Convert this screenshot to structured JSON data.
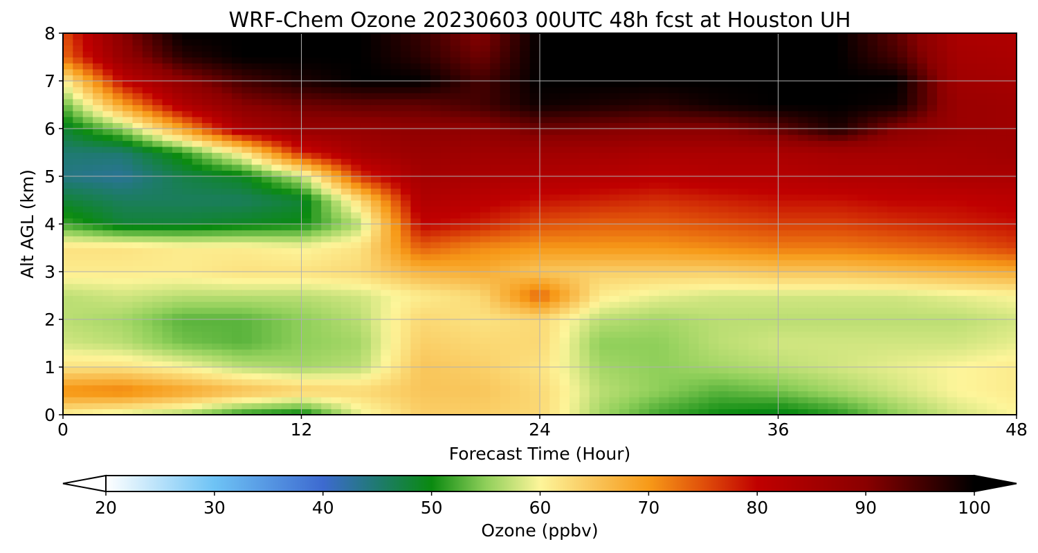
{
  "chart_data": {
    "type": "heatmap",
    "title": "WRF-Chem Ozone  20230603 00UTC 48h fcst at Houston UH",
    "xlabel": "Forecast Time (Hour)",
    "ylabel": "Alt AGL (km)",
    "xlim": [
      0,
      48
    ],
    "ylim": [
      0,
      8
    ],
    "xticks": [
      0,
      12,
      24,
      36,
      48
    ],
    "yticks": [
      0,
      1,
      2,
      3,
      4,
      5,
      6,
      7,
      8
    ],
    "grid": true,
    "colorbar": {
      "label": "Ozone  (ppbv)",
      "min": 20,
      "max": 100,
      "ticks": [
        20,
        30,
        40,
        50,
        60,
        70,
        80,
        90,
        100
      ],
      "extend": "both",
      "stops": [
        {
          "v": 20,
          "c": "#ffffff"
        },
        {
          "v": 30,
          "c": "#6ec3f5"
        },
        {
          "v": 40,
          "c": "#3d6ad0"
        },
        {
          "v": 45,
          "c": "#1f7a70"
        },
        {
          "v": 50,
          "c": "#0a8a10"
        },
        {
          "v": 55,
          "c": "#8fcf5a"
        },
        {
          "v": 60,
          "c": "#fdf59a"
        },
        {
          "v": 65,
          "c": "#f9c55a"
        },
        {
          "v": 70,
          "c": "#f79a18"
        },
        {
          "v": 75,
          "c": "#e0500a"
        },
        {
          "v": 80,
          "c": "#c00000"
        },
        {
          "v": 90,
          "c": "#8a0000"
        },
        {
          "v": 100,
          "c": "#000000"
        }
      ]
    },
    "x_hours": [
      0,
      3,
      6,
      9,
      12,
      15,
      18,
      21,
      24,
      27,
      30,
      33,
      36,
      39,
      42,
      45,
      48
    ],
    "y_km": [
      0,
      0.5,
      1,
      1.5,
      2,
      2.5,
      3,
      3.5,
      4,
      4.5,
      5,
      5.5,
      6,
      6.5,
      7,
      7.5,
      8
    ],
    "ozone_ppbv": [
      [
        60,
        58,
        56,
        51,
        49,
        59,
        64,
        64,
        63,
        56,
        52,
        50,
        49,
        51,
        55,
        58,
        60
      ],
      [
        71,
        72,
        69,
        66,
        64,
        63,
        65,
        65,
        63,
        57,
        55,
        53,
        54,
        56,
        58,
        60,
        61
      ],
      [
        62,
        62,
        60,
        57,
        56,
        57,
        65,
        64,
        62,
        56,
        55,
        56,
        57,
        58,
        59,
        60,
        61
      ],
      [
        58,
        57,
        54,
        53,
        55,
        56,
        64,
        63,
        63,
        55,
        55,
        57,
        58,
        58,
        58,
        58,
        59
      ],
      [
        57,
        56,
        53,
        53,
        55,
        57,
        63,
        62,
        63,
        57,
        56,
        57,
        57,
        57,
        57,
        57,
        58
      ],
      [
        57,
        58,
        57,
        57,
        57,
        58,
        61,
        63,
        74,
        61,
        59,
        58,
        58,
        58,
        58,
        59,
        60
      ],
      [
        61,
        61,
        61,
        62,
        62,
        63,
        67,
        68,
        65,
        64,
        64,
        64,
        65,
        65,
        66,
        67,
        68
      ],
      [
        62,
        62,
        61,
        61,
        60,
        62,
        74,
        71,
        70,
        70,
        70,
        71,
        72,
        72,
        73,
        74,
        76
      ],
      [
        52,
        48,
        48,
        49,
        50,
        57,
        80,
        78,
        75,
        74,
        74,
        75,
        76,
        76,
        77,
        78,
        79
      ],
      [
        48,
        46,
        46,
        46,
        48,
        63,
        83,
        81,
        79,
        78,
        77,
        78,
        79,
        79,
        80,
        80,
        81
      ],
      [
        44,
        43,
        47,
        49,
        57,
        77,
        85,
        84,
        83,
        82,
        81,
        82,
        82,
        83,
        83,
        84,
        84
      ],
      [
        45,
        45,
        51,
        61,
        78,
        85,
        87,
        86,
        86,
        85,
        84,
        84,
        84,
        85,
        85,
        85,
        86
      ],
      [
        48,
        55,
        69,
        84,
        88,
        88,
        89,
        89,
        92,
        91,
        90,
        90,
        93,
        98,
        90,
        87,
        86
      ],
      [
        53,
        69,
        83,
        90,
        92,
        93,
        93,
        95,
        99,
        98,
        97,
        99,
        100,
        100,
        99,
        87,
        86
      ],
      [
        60,
        80,
        89,
        95,
        98,
        100,
        100,
        95,
        100,
        100,
        100,
        100,
        100,
        100,
        100,
        86,
        85
      ],
      [
        73,
        88,
        97,
        100,
        100,
        100,
        97,
        92,
        100,
        100,
        100,
        100,
        100,
        100,
        95,
        85,
        84
      ],
      [
        75,
        90,
        100,
        100,
        100,
        100,
        96,
        90,
        100,
        100,
        100,
        100,
        100,
        100,
        93,
        84,
        83
      ]
    ]
  }
}
